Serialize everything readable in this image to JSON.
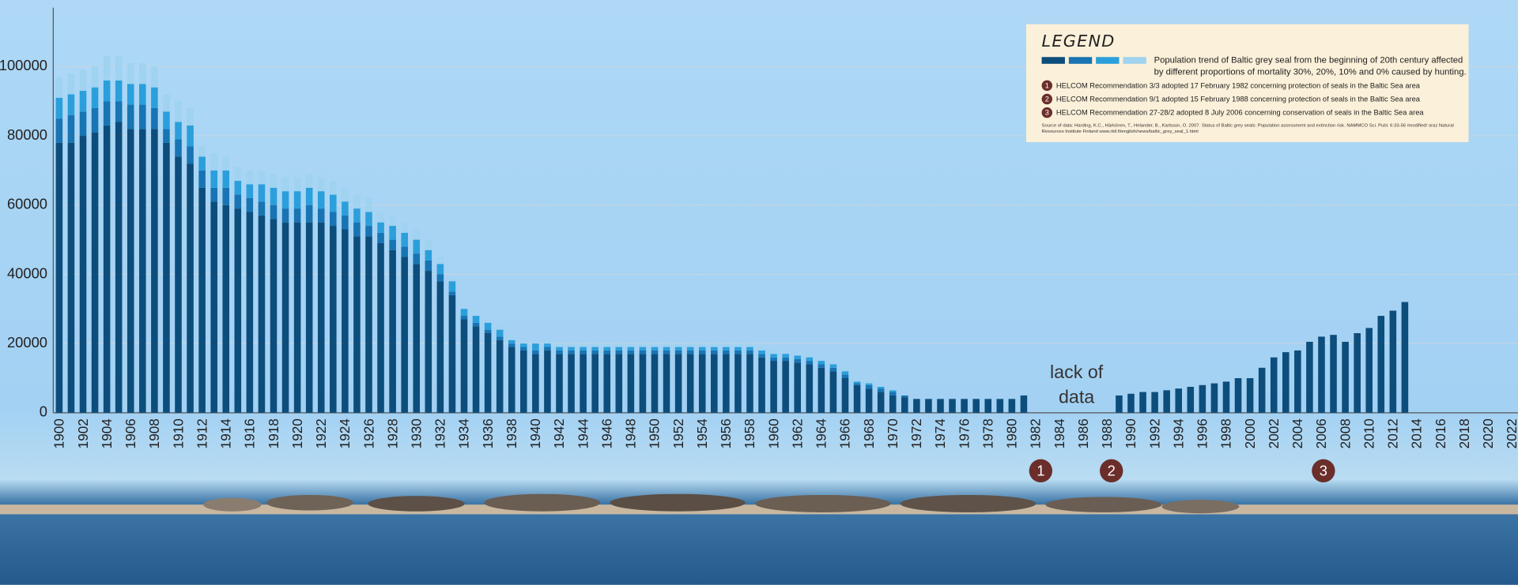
{
  "chart_data": {
    "type": "bar",
    "stacked": true,
    "categories": [
      "1900",
      null,
      "1902",
      null,
      "1904",
      null,
      "1906",
      null,
      "1908",
      null,
      "1910",
      null,
      "1912",
      null,
      "1914",
      null,
      "1916",
      null,
      "1918",
      null,
      "1920",
      null,
      "1922",
      null,
      "1924",
      null,
      "1926",
      null,
      "1928",
      null,
      "1930",
      null,
      "1932",
      null,
      "1934",
      null,
      "1936",
      null,
      "1938",
      null,
      "1940",
      null,
      "1942",
      null,
      "1944",
      null,
      "1946",
      null,
      "1948",
      null,
      "1950",
      null,
      "1952",
      null,
      "1954",
      null,
      "1956",
      null,
      "1958",
      null,
      "1960",
      null,
      "1962",
      null,
      "1964",
      null,
      "1966",
      null,
      "1968",
      null,
      "1970",
      null,
      "1972",
      null,
      "1974",
      null,
      "1976",
      null,
      "1978",
      null,
      "1980",
      null,
      "1982",
      null,
      "1984",
      null,
      "1986",
      null,
      "1988",
      null,
      "1990",
      null,
      "1992",
      null,
      "1994",
      null,
      "1996",
      null,
      "1998",
      null,
      "2000",
      null,
      "2002",
      null,
      "2004",
      null,
      "2006",
      null,
      "2008",
      null,
      "2010",
      null,
      "2012",
      null,
      "2014",
      null,
      "2016",
      null,
      "2018",
      null,
      "2020",
      null,
      "2022"
    ],
    "series": [
      {
        "color": "#0d4d7c",
        "values": [
          78000,
          78000,
          80000,
          81000,
          83000,
          84000,
          82000,
          82000,
          82000,
          78000,
          74000,
          72000,
          65000,
          61000,
          60000,
          59000,
          58000,
          57000,
          56000,
          55000,
          55000,
          55000,
          55000,
          54000,
          53000,
          51000,
          51000,
          49000,
          47000,
          45000,
          43000,
          41000,
          38000,
          34000,
          27000,
          25000,
          23000,
          21000,
          19000,
          18000,
          17000,
          18000,
          17000,
          17000,
          17000,
          17000,
          17000,
          17000,
          17000,
          17000,
          17000,
          17000,
          17000,
          17000,
          17000,
          17000,
          17000,
          17000,
          17000,
          16000,
          15000,
          15000,
          14500,
          14000,
          13000,
          12000,
          10000,
          8000,
          7000,
          6000,
          5000,
          4500,
          4000,
          4000,
          4000,
          4000,
          4000,
          4000,
          4000,
          4000,
          4000,
          5000,
          null,
          null,
          null,
          null,
          null,
          null,
          null,
          5000,
          5500,
          6000,
          6000,
          6500,
          7000,
          7500,
          8000,
          8500,
          9000,
          10000,
          10000,
          13000,
          16000,
          17500,
          18000,
          20500,
          22000,
          22500,
          20500,
          23000,
          24500,
          28000,
          29500,
          32000,
          null,
          null,
          null,
          null,
          null,
          null,
          null,
          null,
          null
        ]
      },
      {
        "color": "#1874b2",
        "values": [
          7000,
          8000,
          7000,
          7000,
          7000,
          6000,
          7000,
          7000,
          6000,
          4000,
          5000,
          5000,
          5000,
          4000,
          5000,
          4000,
          4000,
          4000,
          4000,
          4000,
          4000,
          5000,
          4000,
          4000,
          4000,
          4000,
          3000,
          3000,
          3000,
          3000,
          3000,
          3000,
          2000,
          1000,
          1000,
          1000,
          1000,
          1000,
          1000,
          1000,
          1000,
          1000,
          1000,
          1000,
          1000,
          1000,
          1000,
          1000,
          1000,
          1000,
          1000,
          1000,
          1000,
          1000,
          1000,
          1000,
          1000,
          1000,
          1000,
          1000,
          1000,
          1000,
          1000,
          1000,
          1000,
          1000,
          1000,
          500,
          1000,
          1000,
          1000,
          500,
          null,
          null,
          null,
          null,
          null,
          null,
          null,
          null,
          null,
          null,
          null,
          null,
          null,
          null,
          null,
          null,
          null,
          null,
          null,
          null,
          null,
          null,
          null,
          null,
          null,
          null,
          null,
          null,
          null,
          null,
          null,
          null,
          null,
          null,
          null,
          null,
          null,
          null,
          null,
          null,
          null,
          null,
          null,
          null,
          null,
          null,
          null,
          null,
          null,
          null,
          null
        ]
      },
      {
        "color": "#2b9fdb",
        "values": [
          6000,
          6000,
          6000,
          6000,
          6000,
          6000,
          6000,
          6000,
          6000,
          5000,
          5000,
          6000,
          4000,
          5000,
          5000,
          4000,
          4000,
          5000,
          5000,
          5000,
          5000,
          5000,
          5000,
          5000,
          4000,
          4000,
          4000,
          3000,
          4000,
          4000,
          4000,
          3000,
          3000,
          3000,
          2000,
          2000,
          2000,
          2000,
          1000,
          1000,
          2000,
          1000,
          1000,
          1000,
          1000,
          1000,
          1000,
          1000,
          1000,
          1000,
          1000,
          1000,
          1000,
          1000,
          1000,
          1000,
          1000,
          1000,
          1000,
          1000,
          1000,
          1000,
          1000,
          1000,
          1000,
          1000,
          1000,
          500,
          500,
          500,
          500,
          null,
          null,
          null,
          null,
          null,
          null,
          null,
          null,
          null,
          null,
          null,
          null,
          null,
          null,
          null,
          null,
          null,
          null,
          null,
          null,
          null,
          null,
          null,
          null,
          null,
          null,
          null,
          null,
          null,
          null,
          null,
          null,
          null,
          null,
          null,
          null,
          null,
          null,
          null,
          null,
          null,
          null,
          null,
          null,
          null,
          null,
          null,
          null,
          null,
          null,
          null,
          null
        ]
      },
      {
        "color": "#9fd3f0",
        "values": [
          6000,
          6000,
          6000,
          6000,
          7000,
          7000,
          6000,
          6000,
          6000,
          5000,
          6000,
          5000,
          3000,
          5000,
          4000,
          4000,
          4000,
          4000,
          4000,
          4000,
          4000,
          4000,
          4000,
          4000,
          4000,
          4000,
          4000,
          3000,
          3000,
          3000,
          3000,
          3000,
          2000,
          1000,
          0,
          0,
          0,
          1000,
          1000,
          0,
          0,
          1000,
          1000,
          1000,
          1000,
          1000,
          1000,
          1000,
          1000,
          1000,
          1000,
          1000,
          1000,
          1000,
          1000,
          1000,
          1000,
          1000,
          1000,
          1000,
          1000,
          0,
          0,
          0,
          0,
          0,
          1000,
          0,
          500,
          500,
          500,
          null,
          null,
          null,
          null,
          null,
          null,
          null,
          null,
          null,
          null,
          null,
          null,
          null,
          null,
          null,
          null,
          null,
          null,
          null,
          null,
          null,
          null,
          null,
          null,
          null,
          null,
          null,
          null,
          null,
          null,
          null,
          null,
          null,
          null,
          null,
          null,
          null,
          null,
          null,
          null,
          null,
          null,
          null,
          null,
          null,
          null,
          null,
          null,
          null,
          null,
          null,
          null
        ]
      }
    ],
    "ylim": [
      0,
      117000
    ],
    "yticks": [
      0,
      20000,
      40000,
      60000,
      80000,
      100000
    ],
    "grid": true,
    "annotation": {
      "lines": [
        "lack of",
        "data"
      ]
    },
    "legend": {
      "title": "LEGEND",
      "text": "Population trend of Baltic grey seal from the beginning of 20th century affected by different proportions of mortality 30%, 20%, 10% and 0% caused by hunting.",
      "notes": [
        {
          "number": "1",
          "text": "HELCOM Recommendation 3/3 adopted 17 February 1982 concerning protection of seals in the Baltic Sea area"
        },
        {
          "number": "2",
          "text": "HELCOM Recommendation 9/1 adopted 15 February 1988 concerning protection of seals in the Baltic Sea area"
        },
        {
          "number": "3",
          "text": "HELCOM Recommendation 27-28/2 adopted 8 July 2006 concerning conservation of seals in the Baltic Sea area"
        }
      ],
      "source": "Source of data: Harding, K.C., Härkönen, T., Helander, B., Karlsson, O. 2007. Status of Baltic grey seals: Population assessment and extinction risk. NAMMCO Sci. Publ. 6:33-56 /modified/ oraz Natural Resources Institute Finland www.rktl.fi/english/news/baltic_grey_seal_1.html"
    }
  }
}
